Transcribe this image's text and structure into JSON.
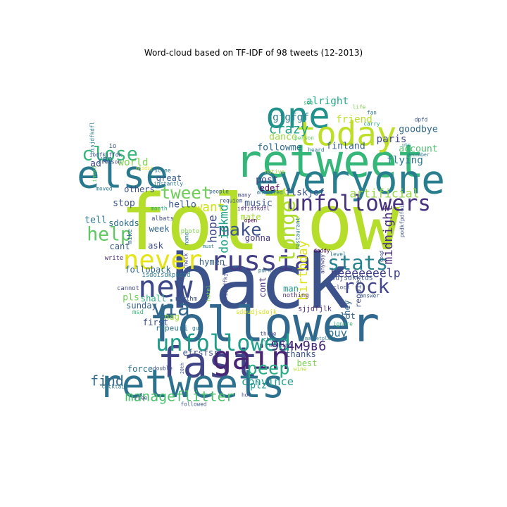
{
  "chart_data": {
    "type": "wordcloud",
    "title": "Word-cloud based on TF-IDF of 98 tweets (12-2013)",
    "colormap": "viridis",
    "words": [
      {
        "text": "follow",
        "weight": 1.0,
        "color": "#b5de2b"
      },
      {
        "text": "back",
        "weight": 0.97,
        "color": "#3b528b"
      },
      {
        "text": "follower",
        "weight": 0.62,
        "color": "#31688e"
      },
      {
        "text": "retweet",
        "weight": 0.58,
        "color": "#35b779"
      },
      {
        "text": "fast",
        "weight": 0.54,
        "color": "#414487"
      },
      {
        "text": "everyone",
        "weight": 0.51,
        "color": "#287d8e"
      },
      {
        "text": "retweets",
        "weight": 0.5,
        "color": "#2c728e"
      },
      {
        "text": "else",
        "weight": 0.49,
        "color": "#2a788e"
      },
      {
        "text": "one",
        "weight": 0.46,
        "color": "#21918c"
      },
      {
        "text": "today",
        "weight": 0.43,
        "color": "#bddf26"
      },
      {
        "text": "gain",
        "weight": 0.42,
        "color": "#482475"
      },
      {
        "text": "new",
        "weight": 0.39,
        "color": "#3e4989"
      },
      {
        "text": "russia",
        "weight": 0.36,
        "color": "#433e85"
      },
      {
        "text": "never",
        "weight": 0.34,
        "color": "#e5e419"
      },
      {
        "text": "unfollowed",
        "weight": 0.29,
        "color": "#1f9e89"
      },
      {
        "text": "unfollowers",
        "weight": 0.28,
        "color": "#46327e"
      },
      {
        "text": "via",
        "weight": 0.27,
        "color": "#31688e"
      },
      {
        "text": "longer",
        "weight": 0.27,
        "color": "#addc30"
      },
      {
        "text": "stats",
        "weight": 0.26,
        "color": "#26828e"
      },
      {
        "text": "rock",
        "weight": 0.25,
        "color": "#404688"
      },
      {
        "text": "close",
        "weight": 0.24,
        "color": "#35b779"
      },
      {
        "text": "help",
        "weight": 0.24,
        "color": "#5ec962"
      },
      {
        "text": "make",
        "weight": 0.23,
        "color": "#3b528b"
      },
      {
        "text": "peep",
        "weight": 0.23,
        "color": "#25ac82"
      },
      {
        "text": "tweet",
        "weight": 0.22,
        "color": "#6ece58"
      },
      {
        "text": "find",
        "weight": 0.18,
        "color": "#31688e"
      },
      {
        "text": "manageflitter",
        "weight": 0.18,
        "color": "#4ac16d"
      },
      {
        "text": "crazy",
        "weight": 0.17,
        "color": "#1fa188"
      },
      {
        "text": "954м9в6",
        "weight": 0.17,
        "color": "#472a7a"
      },
      {
        "text": "want",
        "weight": 0.16,
        "color": "#d0e11c"
      },
      {
        "text": "midnight",
        "weight": 0.16,
        "color": "#472d7b"
      },
      {
        "text": "birthday",
        "weight": 0.16,
        "color": "#dde318"
      },
      {
        "text": "heeeeeeelp",
        "weight": 0.15,
        "color": "#414487"
      },
      {
        "text": "artificial",
        "weight": 0.15,
        "color": "#95d840"
      },
      {
        "text": "hope",
        "weight": 0.15,
        "color": "#3e4989"
      },
      {
        "text": "doidkmd",
        "weight": 0.15,
        "color": "#20a386"
      },
      {
        "text": "convince",
        "weight": 0.14,
        "color": "#1e9b8a"
      },
      {
        "text": "buy",
        "weight": 0.14,
        "color": "#2e6e8e"
      },
      {
        "text": "world",
        "weight": 0.13,
        "color": "#7fd34e"
      },
      {
        "text": "friend",
        "weight": 0.13,
        "color": "#b8de29"
      },
      {
        "text": "alright",
        "weight": 0.13,
        "color": "#22a785"
      },
      {
        "text": "gfgfgf",
        "weight": 0.13,
        "color": "#297b8e"
      },
      {
        "text": "paris",
        "weight": 0.13,
        "color": "#3f4788"
      },
      {
        "text": "goodbye",
        "weight": 0.12,
        "color": "#306a8e"
      },
      {
        "text": "account",
        "weight": 0.12,
        "color": "#4ac16d"
      },
      {
        "text": "flying",
        "weight": 0.13,
        "color": "#2a788e"
      },
      {
        "text": "finland",
        "weight": 0.12,
        "color": "#34608d"
      },
      {
        "text": "dance",
        "weight": 0.12,
        "color": "#9bd93c"
      },
      {
        "text": "followme",
        "weight": 0.12,
        "color": "#2f6b8e"
      },
      {
        "text": "post",
        "weight": 0.12,
        "color": "#404588"
      },
      {
        "text": "edef",
        "weight": 0.11,
        "color": "#440154"
      },
      {
        "text": "flskjef",
        "weight": 0.12,
        "color": "#39558c"
      },
      {
        "text": "music",
        "weight": 0.12,
        "color": "#3a548c"
      },
      {
        "text": "mate",
        "weight": 0.11,
        "color": "#a8db34"
      },
      {
        "text": "gonna",
        "weight": 0.11,
        "color": "#453781"
      },
      {
        "text": "hello",
        "weight": 0.12,
        "color": "#38598c"
      },
      {
        "text": "great",
        "weight": 0.11,
        "color": "#375b8d"
      },
      {
        "text": "others",
        "weight": 0.11,
        "color": "#3c4f8a"
      },
      {
        "text": "stop",
        "weight": 0.12,
        "color": "#3a548c"
      },
      {
        "text": "ad",
        "weight": 0.12,
        "color": "#3f4889"
      },
      {
        "text": "yan",
        "weight": 0.11,
        "color": "#2a768e"
      },
      {
        "text": "tell",
        "weight": 0.12,
        "color": "#2b748e"
      },
      {
        "text": "sdokds",
        "weight": 0.11,
        "color": "#2e6f8e"
      },
      {
        "text": "week",
        "weight": 0.11,
        "color": "#32658e"
      },
      {
        "text": "ask",
        "weight": 0.11,
        "color": "#3d4d8a"
      },
      {
        "text": "cant",
        "weight": 0.11,
        "color": "#365d8d"
      },
      {
        "text": "folloback",
        "weight": 0.11,
        "color": "#31678e"
      },
      {
        "text": "pls",
        "weight": 0.12,
        "color": "#73d056"
      },
      {
        "text": "shall",
        "weight": 0.11,
        "color": "#29af7f"
      },
      {
        "text": "sunday",
        "weight": 0.11,
        "color": "#34618d"
      },
      {
        "text": "nag",
        "weight": 0.11,
        "color": "#a2da37"
      },
      {
        "text": "first",
        "weight": 0.11,
        "color": "#3d4e8a"
      },
      {
        "text": "ropeuri",
        "weight": 0.1,
        "color": "#2c718e"
      },
      {
        "text": "hymen",
        "weight": 0.11,
        "color": "#355f8d"
      },
      {
        "text": "man",
        "weight": 0.11,
        "color": "#1f948c"
      },
      {
        "text": "thanks",
        "weight": 0.11,
        "color": "#3b528b"
      },
      {
        "text": "efrsfsr",
        "weight": 0.11,
        "color": "#3c508b"
      },
      {
        "text": "cont",
        "weight": 0.11,
        "color": "#472f7d"
      },
      {
        "text": "hey",
        "weight": 0.11,
        "color": "#31688e"
      },
      {
        "text": "lot",
        "weight": 0.11,
        "color": "#365c8d"
      },
      {
        "text": "reopier",
        "weight": 0.1,
        "color": "#3d4e8a"
      },
      {
        "text": "best",
        "weight": 0.11,
        "color": "#7ad151"
      },
      {
        "text": "force",
        "weight": 0.11,
        "color": "#2d718e"
      },
      {
        "text": "plz",
        "weight": 0.12,
        "color": "#1f958b"
      },
      {
        "text": "sdjsdkklds",
        "weight": 0.09,
        "color": "#3b528b"
      },
      {
        "text": "sjjdfjlk",
        "weight": 0.09,
        "color": "#482878"
      },
      {
        "text": "nothing",
        "weight": 0.08,
        "color": "#482475"
      },
      {
        "text": "sdoudjsdojk",
        "weight": 0.08,
        "color": "#d8e219"
      },
      {
        "text": "isdoisdkpkosd",
        "weight": 0.08,
        "color": "#2a788e"
      },
      {
        "text": "rhythm",
        "weight": 0.08,
        "color": "#3b528b"
      },
      {
        "text": "cannot",
        "weight": 0.08,
        "color": "#404588"
      },
      {
        "text": "msd",
        "weight": 0.08,
        "color": "#35b779"
      },
      {
        "text": "write",
        "weight": 0.08,
        "color": "#482878"
      },
      {
        "text": "mike",
        "weight": 0.08,
        "color": "#2f6c8e"
      },
      {
        "text": "albats",
        "weight": 0.08,
        "color": "#3e4a89"
      },
      {
        "text": "photo",
        "weight": 0.08,
        "color": "#7fd34e"
      },
      {
        "text": "month",
        "weight": 0.07,
        "color": "#22a884"
      },
      {
        "text": "people",
        "weight": 0.07,
        "color": "#31688e"
      },
      {
        "text": "requiem",
        "weight": 0.07,
        "color": "#3b528b"
      },
      {
        "text": "idfjdfkdfl",
        "weight": 0.07,
        "color": "#482475"
      },
      {
        "text": "open",
        "weight": 0.07,
        "color": "#440154"
      },
      {
        "text": "many",
        "weight": 0.07,
        "color": "#414487"
      },
      {
        "text": "answered",
        "weight": 0.07,
        "color": "#2a788e"
      },
      {
        "text": "native",
        "weight": 0.07,
        "color": "#a8db34"
      },
      {
        "text": "scene",
        "weight": 0.07,
        "color": "#2a788e"
      },
      {
        "text": "instantly",
        "weight": 0.07,
        "color": "#2a788e"
      },
      {
        "text": "moved",
        "weight": 0.07,
        "color": "#2a788e"
      },
      {
        "text": "nelson",
        "weight": 0.07,
        "color": "#414487"
      },
      {
        "text": "iodfkjffdk",
        "weight": 0.07,
        "color": "#3b528b"
      },
      {
        "text": "io",
        "weight": 0.08,
        "color": "#3b528b"
      },
      {
        "text": "oisjdfkdfl",
        "weight": 0.07,
        "color": "#2a788e"
      },
      {
        "text": "inbsd",
        "weight": 0.07,
        "color": "#5ec962"
      },
      {
        "text": "person",
        "weight": 0.07,
        "color": "#5ec962"
      },
      {
        "text": "heard",
        "weight": 0.07,
        "color": "#2a788e"
      },
      {
        "text": "see",
        "weight": 0.07,
        "color": "#35b779"
      },
      {
        "text": "life",
        "weight": 0.07,
        "color": "#7ad151"
      },
      {
        "text": "fan",
        "weight": 0.07,
        "color": "#2a788e"
      },
      {
        "text": "carry",
        "weight": 0.07,
        "color": "#22a884"
      },
      {
        "text": "dpfd",
        "weight": 0.07,
        "color": "#3b528b"
      },
      {
        "text": "utc",
        "weight": 0.06,
        "color": "#2a788e"
      },
      {
        "text": "december",
        "weight": 0.06,
        "color": "#2a788e"
      },
      {
        "text": "good",
        "weight": 0.06,
        "color": "#3b528b"
      },
      {
        "text": "podkfpdfoi",
        "weight": 0.07,
        "color": "#3b528b"
      },
      {
        "text": "daddy",
        "weight": 0.07,
        "color": "#440154"
      },
      {
        "text": "restaurant",
        "weight": 0.07,
        "color": "#2a788e"
      },
      {
        "text": "level",
        "weight": 0.07,
        "color": "#2a788e"
      },
      {
        "text": "anyway",
        "weight": 0.07,
        "color": "#414487"
      },
      {
        "text": "park",
        "weight": 0.07,
        "color": "#2a788e"
      },
      {
        "text": "clock",
        "weight": 0.07,
        "color": "#3b528b"
      },
      {
        "text": "answer",
        "weight": 0.07,
        "color": "#3b528b"
      },
      {
        "text": "ignore",
        "weight": 0.07,
        "color": "#35b779"
      },
      {
        "text": "changed",
        "weight": 0.07,
        "color": "#2a788e"
      },
      {
        "text": "three",
        "weight": 0.07,
        "color": "#414487"
      },
      {
        "text": "wedding",
        "weight": 0.07,
        "color": "#414487"
      },
      {
        "text": "marketplace",
        "weight": 0.06,
        "color": "#2a788e"
      },
      {
        "text": "wine",
        "weight": 0.07,
        "color": "#b5de2b"
      },
      {
        "text": "double",
        "weight": 0.07,
        "color": "#3b528b"
      },
      {
        "text": "cocktail",
        "weight": 0.07,
        "color": "#2a788e"
      },
      {
        "text": "free",
        "weight": 0.07,
        "color": "#414487"
      },
      {
        "text": "followed",
        "weight": 0.07,
        "color": "#3b528b"
      },
      {
        "text": "hot",
        "weight": 0.07,
        "color": "#414487"
      },
      {
        "text": "28th",
        "weight": 0.06,
        "color": "#3b528b"
      },
      {
        "text": "hotel",
        "weight": 0.07,
        "color": "#7ad151"
      },
      {
        "text": "guy",
        "weight": 0.07,
        "color": "#2a788e"
      },
      {
        "text": "check",
        "weight": 0.07,
        "color": "#414487"
      },
      {
        "text": "name",
        "weight": 0.07,
        "color": "#2a788e"
      },
      {
        "text": "must",
        "weight": 0.06,
        "color": "#2a788e"
      },
      {
        "text": "ofijudfkjoff",
        "weight": 0.07,
        "color": "#414487"
      },
      {
        "text": "nlidsj",
        "weight": 0.06,
        "color": "#e5e419"
      }
    ]
  }
}
